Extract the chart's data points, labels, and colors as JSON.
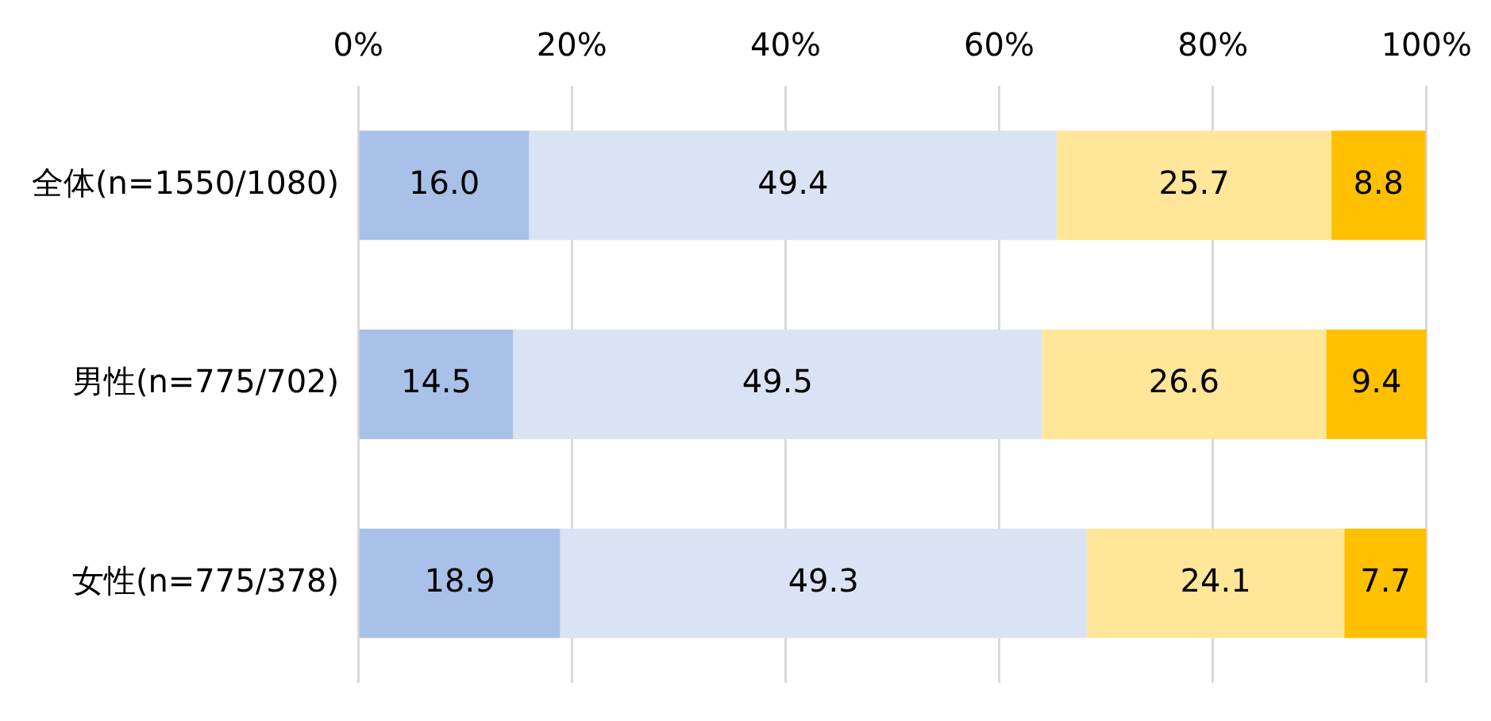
{
  "chart_data": {
    "type": "bar",
    "orientation": "horizontal",
    "stacked": true,
    "categories": [
      "全体(n=1550/1080)",
      "男性(n=775/702)",
      "女性(n=775/378)"
    ],
    "series": [
      {
        "color": "#a9c1e8",
        "values": [
          16.0,
          14.5,
          18.9
        ],
        "value_labels": [
          "16.0",
          "14.5",
          "18.9"
        ]
      },
      {
        "color": "#dae3f3",
        "values": [
          49.4,
          49.5,
          49.3
        ],
        "value_labels": [
          "49.4",
          "49.5",
          "49.3"
        ]
      },
      {
        "color": "#ffe699",
        "values": [
          25.7,
          26.6,
          24.1
        ],
        "value_labels": [
          "25.7",
          "26.6",
          "24.1"
        ]
      },
      {
        "color": "#ffc000",
        "values": [
          8.8,
          9.4,
          7.7
        ],
        "value_labels": [
          "8.8",
          "9.4",
          "7.7"
        ]
      }
    ],
    "xlim": [
      0,
      100
    ],
    "xticks": [
      {
        "value": 0,
        "label": "0%"
      },
      {
        "value": 20,
        "label": "20%"
      },
      {
        "value": 40,
        "label": "40%"
      },
      {
        "value": 60,
        "label": "60%"
      },
      {
        "value": 80,
        "label": "80%"
      },
      {
        "value": 100,
        "label": "100%"
      }
    ],
    "grid": "x",
    "legend": false
  }
}
